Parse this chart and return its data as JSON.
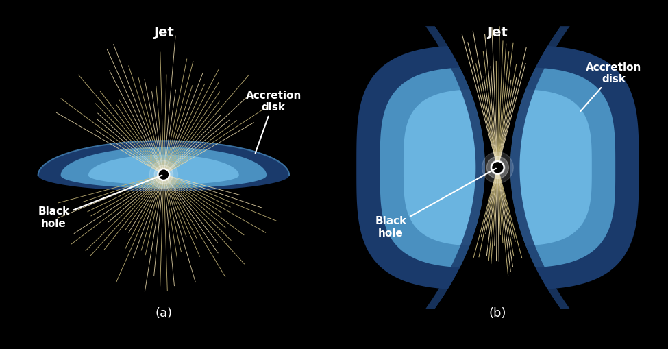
{
  "bg_color": "#000000",
  "text_color": "#ffffff",
  "disk_light": "#6ab4e0",
  "disk_mid": "#4a90c0",
  "disk_dark": "#1a3a6b",
  "disk_edge": "#2255a0",
  "jet_color": "#c8b87a",
  "jet_bright": "#e8d8aa",
  "label_a": "(a)",
  "label_b": "(b)",
  "jet_label": "Jet",
  "accretion_label": "Accretion\ndisk",
  "blackhole_label": "Black\nhole",
  "font_bold": 13,
  "font_panel": 13
}
